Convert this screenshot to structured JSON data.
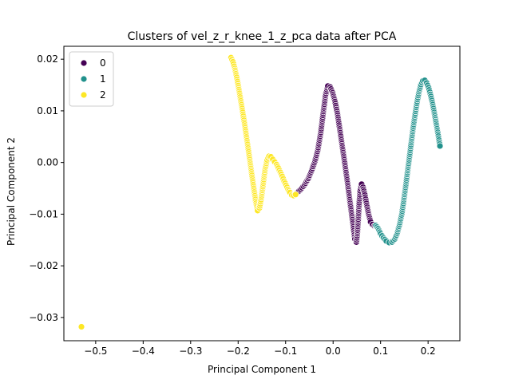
{
  "chart_data": {
    "type": "scatter",
    "title": "Clusters of vel_z_r_knee_1_z_pca data after PCA",
    "xlabel": "Principal Component 1",
    "ylabel": "Principal Component 2",
    "xlim": [
      -0.567,
      0.267
    ],
    "ylim": [
      -0.0345,
      0.0225
    ],
    "xticks": [
      -0.5,
      -0.4,
      -0.3,
      -0.2,
      -0.1,
      0.0,
      0.1,
      0.2
    ],
    "xtick_labels": [
      "−0.5",
      "−0.4",
      "−0.3",
      "−0.2",
      "−0.1",
      "0.0",
      "0.1",
      "0.2"
    ],
    "yticks": [
      -0.03,
      -0.02,
      -0.01,
      0.0,
      0.01,
      0.02
    ],
    "ytick_labels": [
      "−0.03",
      "−0.02",
      "−0.01",
      "0.00",
      "0.01",
      "0.02"
    ],
    "grid": false,
    "legend_position": "upper-left",
    "legend": [
      {
        "label": "0",
        "color": "#440154"
      },
      {
        "label": "1",
        "color": "#21918c"
      },
      {
        "label": "2",
        "color": "#fde725"
      }
    ],
    "series": [
      {
        "name": "0",
        "color": "#440154",
        "x": [
          -0.075,
          -0.068,
          -0.06,
          -0.052,
          -0.045,
          -0.038,
          -0.032,
          -0.026,
          -0.021,
          -0.016,
          -0.011,
          -0.006,
          -0.001,
          0.004,
          0.009,
          0.014,
          0.019,
          0.024,
          0.029,
          0.034,
          0.039,
          0.043,
          0.046,
          0.049,
          0.051,
          0.053,
          0.055,
          0.057,
          0.06,
          0.063,
          0.067,
          0.071,
          0.075,
          0.079,
          0.083,
          0.087,
          0.09
        ],
        "y": [
          -0.0058,
          -0.0052,
          -0.0043,
          -0.0031,
          -0.0015,
          0.0003,
          0.0025,
          0.0058,
          0.0095,
          0.013,
          0.0148,
          0.0146,
          0.0135,
          0.0118,
          0.0095,
          0.0065,
          0.0033,
          0.0002,
          -0.003,
          -0.0065,
          -0.01,
          -0.0128,
          -0.0148,
          -0.0154,
          -0.0138,
          -0.011,
          -0.0078,
          -0.0055,
          -0.0042,
          -0.0048,
          -0.0063,
          -0.0083,
          -0.0101,
          -0.0115,
          -0.012,
          -0.0123,
          -0.0124
        ]
      },
      {
        "name": "1",
        "color": "#21918c",
        "x": [
          0.09,
          0.095,
          0.1,
          0.106,
          0.112,
          0.118,
          0.124,
          0.13,
          0.135,
          0.14,
          0.145,
          0.149,
          0.153,
          0.157,
          0.161,
          0.165,
          0.169,
          0.173,
          0.177,
          0.181,
          0.185,
          0.189,
          0.193,
          0.197,
          0.201,
          0.205,
          0.209,
          0.213,
          0.217,
          0.221,
          0.225
        ],
        "y": [
          -0.0122,
          -0.0128,
          -0.0138,
          -0.0146,
          -0.0152,
          -0.0155,
          -0.0154,
          -0.0148,
          -0.0137,
          -0.012,
          -0.0098,
          -0.0072,
          -0.0045,
          -0.0016,
          0.0012,
          0.0042,
          0.007,
          0.0095,
          0.0118,
          0.0137,
          0.0151,
          0.0158,
          0.0159,
          0.0154,
          0.0145,
          0.0132,
          0.0116,
          0.0097,
          0.0076,
          0.0055,
          0.0032
        ]
      },
      {
        "name": "2",
        "color": "#fde725",
        "x": [
          -0.53,
          -0.215,
          -0.211,
          -0.207,
          -0.203,
          -0.199,
          -0.195,
          -0.191,
          -0.187,
          -0.183,
          -0.179,
          -0.175,
          -0.171,
          -0.167,
          -0.163,
          -0.159,
          -0.155,
          -0.151,
          -0.147,
          -0.143,
          -0.139,
          -0.135,
          -0.131,
          -0.127,
          -0.123,
          -0.119,
          -0.115,
          -0.111,
          -0.107,
          -0.103,
          -0.099,
          -0.095,
          -0.091,
          -0.087,
          -0.083,
          -0.079
        ],
        "y": [
          -0.0318,
          0.0203,
          0.0195,
          0.0182,
          0.0165,
          0.0145,
          0.0123,
          0.0101,
          0.0078,
          0.0053,
          0.0028,
          0.0002,
          -0.0025,
          -0.005,
          -0.0075,
          -0.0093,
          -0.0088,
          -0.0068,
          -0.004,
          -0.0012,
          0.0005,
          0.0012,
          0.0011,
          0.0006,
          0.0001,
          -0.0004,
          -0.0011,
          -0.0019,
          -0.0027,
          -0.0036,
          -0.0044,
          -0.0052,
          -0.0058,
          -0.0063,
          -0.0064,
          -0.0062
        ]
      }
    ]
  }
}
